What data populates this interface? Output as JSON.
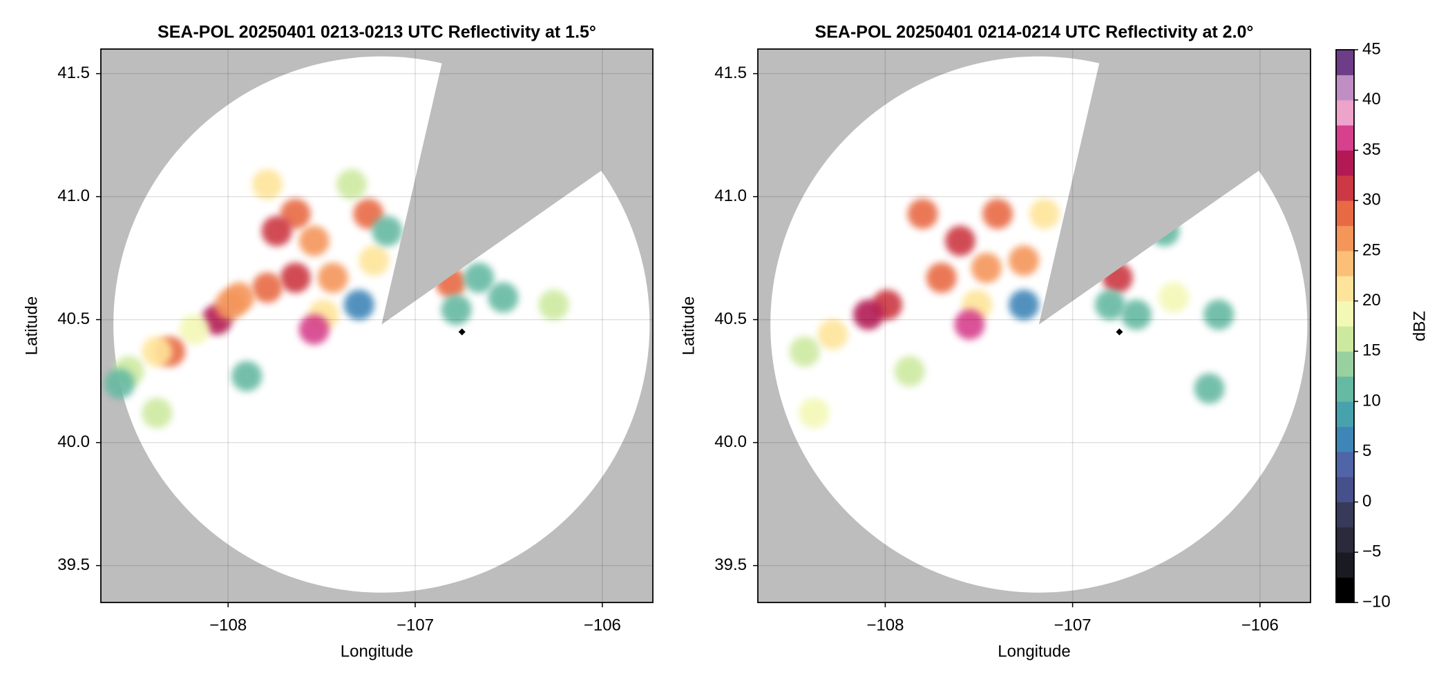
{
  "chart_data": [
    {
      "type": "ppi",
      "title": "SEA-POL 20250401 0213-0213 UTC Reflectivity at 1.5°",
      "xlabel": "Longitude",
      "ylabel": "Latitude",
      "xlim": [
        -108.68,
        -105.73
      ],
      "ylim": [
        39.35,
        41.6
      ],
      "xticks": [
        {
          "value": -108,
          "label": "−108"
        },
        {
          "value": -107,
          "label": "−107"
        },
        {
          "value": -106,
          "label": "−106"
        }
      ],
      "yticks": [
        39.5,
        {
          "value": 40.0,
          "label": "40.0"
        },
        40.5,
        {
          "value": 41.0,
          "label": "41.0"
        },
        41.5
      ],
      "grid": true,
      "radar": {
        "lon": -107.18,
        "lat": 40.48,
        "range_lat_deg": 1.09,
        "blocked_azimuth": [
          13,
          55
        ]
      },
      "marker": {
        "lon": -106.75,
        "lat": 40.45
      },
      "points": {
        "lon": [
          -107.79,
          -107.64,
          -107.74,
          -107.54,
          -107.64,
          -107.79,
          -107.44,
          -107.49,
          -107.25,
          -107.22,
          -107.34,
          -107.15,
          -107.94,
          -108.06,
          -107.99,
          -108.18,
          -108.31,
          -108.38,
          -108.53,
          -108.58,
          -108.38,
          -107.9,
          -107.3,
          -107.54,
          -106.81,
          -106.78,
          -106.66,
          -106.53,
          -106.26
        ],
        "lat": [
          41.05,
          40.93,
          40.86,
          40.82,
          40.67,
          40.63,
          40.67,
          40.52,
          40.93,
          40.74,
          41.05,
          40.86,
          40.59,
          40.5,
          40.56,
          40.46,
          40.37,
          40.37,
          40.29,
          40.24,
          40.12,
          40.27,
          40.56,
          40.46,
          40.65,
          40.54,
          40.67,
          40.59,
          40.56
        ],
        "dbz": [
          20,
          28,
          30,
          25,
          30,
          28,
          25,
          22,
          28,
          20,
          15,
          12,
          25,
          33,
          25,
          18,
          28,
          20,
          15,
          12,
          15,
          12,
          5,
          35,
          28,
          10,
          10,
          12,
          15
        ]
      }
    },
    {
      "type": "ppi",
      "title": "SEA-POL 20250401 0214-0214 UTC Reflectivity at 2.0°",
      "xlabel": "Longitude",
      "ylabel": "Latitude",
      "xlim": [
        -108.68,
        -105.73
      ],
      "ylim": [
        39.35,
        41.6
      ],
      "xticks": [
        {
          "value": -108,
          "label": "−108"
        },
        {
          "value": -107,
          "label": "−107"
        },
        {
          "value": -106,
          "label": "−106"
        }
      ],
      "yticks": [
        39.5,
        {
          "value": 40.0,
          "label": "40.0"
        },
        40.5,
        {
          "value": 41.0,
          "label": "41.0"
        },
        41.5
      ],
      "grid": true,
      "radar": {
        "lon": -107.18,
        "lat": 40.48,
        "range_lat_deg": 1.09,
        "blocked_azimuth": [
          13,
          55
        ]
      },
      "marker": {
        "lon": -106.75,
        "lat": 40.45
      },
      "points": {
        "lon": [
          -107.8,
          -107.6,
          -107.4,
          -107.7,
          -107.46,
          -107.26,
          -107.15,
          -107.51,
          -107.99,
          -108.09,
          -108.28,
          -108.43,
          -107.87,
          -108.38,
          -107.55,
          -107.26,
          -106.76,
          -106.8,
          -106.66,
          -106.46,
          -106.22,
          -106.51,
          -106.27
        ],
        "lat": [
          40.93,
          40.82,
          40.93,
          40.67,
          40.71,
          40.74,
          40.93,
          40.56,
          40.56,
          40.52,
          40.44,
          40.37,
          40.29,
          40.12,
          40.48,
          40.56,
          40.67,
          40.56,
          40.52,
          40.59,
          40.52,
          40.86,
          40.22
        ],
        "dbz": [
          28,
          30,
          28,
          28,
          27,
          25,
          20,
          22,
          30,
          33,
          20,
          15,
          15,
          18,
          35,
          5,
          30,
          12,
          12,
          18,
          12,
          12,
          12
        ]
      }
    },
    {
      "type": "colorbar",
      "label": "dBZ",
      "clim": [
        -10,
        45
      ],
      "ticks": [
        {
          "value": -10,
          "label": "−10"
        },
        {
          "value": -5,
          "label": "−5"
        },
        0,
        5,
        10,
        15,
        20,
        25,
        30,
        35,
        40,
        45
      ],
      "colors": [
        "#000000",
        "#1a1a22",
        "#2a2a3c",
        "#383a5a",
        "#46508a",
        "#5064a8",
        "#3f86b8",
        "#47a2ae",
        "#66b9a2",
        "#99d0a0",
        "#cde9a0",
        "#f3f8b5",
        "#fee49a",
        "#fbbf78",
        "#f4955a",
        "#e86a45",
        "#cc3843",
        "#b31a55",
        "#d6408c",
        "#eea3cb",
        "#bf8fc4",
        "#6e3d87"
      ]
    }
  ]
}
